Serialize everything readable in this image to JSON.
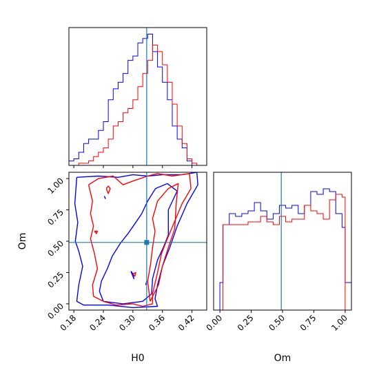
{
  "chart_data": {
    "type": "corner",
    "parameters": [
      "H0",
      "Om"
    ],
    "truth": {
      "H0": 0.328,
      "Om": 0.49
    },
    "colors": {
      "series_1": "#0000ff",
      "series_2": "#ff0000",
      "truth": "#1f77b4",
      "frame": "#000000"
    },
    "H0_axis": {
      "range": [
        0.17,
        0.45
      ],
      "ticks": [
        0.18,
        0.24,
        0.3,
        0.36,
        0.42
      ],
      "tick_labels": [
        "0.18",
        "0.24",
        "0.30",
        "0.36",
        "0.42"
      ],
      "label": "H0"
    },
    "Om_axis": {
      "range": [
        -0.05,
        1.05
      ],
      "ticks": [
        0.0,
        0.25,
        0.5,
        0.75,
        1.0
      ],
      "tick_labels": [
        "0.00",
        "0.25",
        "0.50",
        "0.75",
        "1.00"
      ],
      "label": "Om"
    },
    "marginal_H0": {
      "bin_edges": [
        0.17,
        0.18,
        0.19,
        0.2,
        0.21,
        0.22,
        0.23,
        0.24,
        0.25,
        0.26,
        0.27,
        0.28,
        0.29,
        0.3,
        0.31,
        0.32,
        0.33,
        0.34,
        0.35,
        0.36,
        0.37,
        0.38,
        0.39,
        0.4,
        0.41,
        0.42,
        0.43,
        0.44,
        0.45
      ],
      "series": [
        {
          "color": "#0000ff",
          "counts": [
            2,
            3,
            6,
            10,
            12,
            12,
            16,
            20,
            30,
            35,
            38,
            42,
            48,
            50,
            56,
            58,
            60,
            52,
            45,
            38,
            30,
            18,
            12,
            8,
            2,
            0,
            0,
            0
          ]
        },
        {
          "color": "#ff0000",
          "counts": [
            0,
            0,
            1,
            1,
            2,
            4,
            6,
            8,
            12,
            18,
            20,
            24,
            26,
            30,
            36,
            42,
            48,
            55,
            52,
            46,
            38,
            28,
            18,
            10,
            3,
            1,
            0,
            0
          ]
        }
      ]
    },
    "marginal_Om": {
      "bin_edges": [
        -0.05,
        0.0,
        0.025,
        0.075,
        0.125,
        0.175,
        0.225,
        0.275,
        0.325,
        0.375,
        0.425,
        0.475,
        0.525,
        0.575,
        0.625,
        0.675,
        0.725,
        0.775,
        0.825,
        0.875,
        0.925,
        0.975,
        1.0,
        1.05
      ],
      "series": [
        {
          "color": "#0000ff",
          "counts": [
            0,
            0.2,
            0.62,
            0.7,
            0.68,
            0.7,
            0.72,
            0.78,
            0.72,
            0.66,
            0.7,
            0.76,
            0.74,
            0.76,
            0.7,
            0.76,
            0.86,
            0.84,
            0.88,
            0.86,
            0.7,
            0.6,
            0.2
          ]
        },
        {
          "color": "#ff0000",
          "counts": [
            0,
            0,
            0.62,
            0.62,
            0.62,
            0.62,
            0.64,
            0.64,
            0.68,
            0.64,
            0.62,
            0.68,
            0.64,
            0.66,
            0.66,
            0.76,
            0.72,
            0.7,
            0.66,
            0.8,
            0.84,
            0.82,
            0
          ]
        }
      ]
    },
    "joint_contours": [
      {
        "color": "#0000ff",
        "level": "outer",
        "points": [
          [
            0.186,
            1.01
          ],
          [
            0.23,
            1.02
          ],
          [
            0.27,
            1.01
          ],
          [
            0.3,
            1.03
          ],
          [
            0.33,
            1.02
          ],
          [
            0.36,
            1.03
          ],
          [
            0.4,
            1.03
          ],
          [
            0.43,
            1.05
          ],
          [
            0.432,
            0.95
          ],
          [
            0.41,
            0.8
          ],
          [
            0.39,
            0.62
          ],
          [
            0.375,
            0.45
          ],
          [
            0.36,
            0.3
          ],
          [
            0.35,
            0.15
          ],
          [
            0.345,
            0.04
          ],
          [
            0.35,
            -0.02
          ],
          [
            0.3,
            -0.03
          ],
          [
            0.25,
            -0.01
          ],
          [
            0.2,
            -0.01
          ],
          [
            0.186,
            0.02
          ],
          [
            0.19,
            0.15
          ],
          [
            0.198,
            0.3
          ],
          [
            0.19,
            0.42
          ],
          [
            0.183,
            0.5
          ],
          [
            0.188,
            0.65
          ],
          [
            0.182,
            0.8
          ],
          [
            0.186,
            1.01
          ]
        ]
      },
      {
        "color": "#0000ff",
        "level": "inner",
        "points": [
          [
            0.24,
            0.02
          ],
          [
            0.28,
            0.0
          ],
          [
            0.32,
            0.02
          ],
          [
            0.338,
            0.08
          ],
          [
            0.34,
            0.2
          ],
          [
            0.35,
            0.35
          ],
          [
            0.362,
            0.45
          ],
          [
            0.372,
            0.55
          ],
          [
            0.372,
            0.75
          ],
          [
            0.39,
            0.9
          ],
          [
            0.37,
            0.96
          ],
          [
            0.346,
            0.92
          ],
          [
            0.33,
            0.82
          ],
          [
            0.318,
            0.72
          ],
          [
            0.306,
            0.65
          ],
          [
            0.29,
            0.56
          ],
          [
            0.274,
            0.48
          ],
          [
            0.258,
            0.38
          ],
          [
            0.248,
            0.28
          ],
          [
            0.236,
            0.18
          ],
          [
            0.232,
            0.1
          ],
          [
            0.24,
            0.02
          ]
        ]
      },
      {
        "color": "#0000ff",
        "level": "island",
        "points": [
          [
            0.296,
            0.26
          ],
          [
            0.302,
            0.2
          ],
          [
            0.3,
            0.24
          ],
          [
            0.296,
            0.26
          ]
        ]
      },
      {
        "color": "#0000ff",
        "level": "island",
        "points": [
          [
            0.242,
            0.86
          ],
          [
            0.244,
            0.84
          ],
          [
            0.242,
            0.86
          ]
        ]
      },
      {
        "color": "#0000ff",
        "level": "island",
        "points": [
          [
            0.326,
            0.15
          ],
          [
            0.328,
            0.18
          ],
          [
            0.326,
            0.15
          ]
        ]
      },
      {
        "color": "#ff0000",
        "level": "outer",
        "points": [
          [
            0.21,
            0.95
          ],
          [
            0.23,
            1.0
          ],
          [
            0.26,
            1.02
          ],
          [
            0.28,
            0.95
          ],
          [
            0.3,
            0.98
          ],
          [
            0.33,
            1.02
          ],
          [
            0.35,
            1.04
          ],
          [
            0.38,
            1.02
          ],
          [
            0.415,
            1.04
          ],
          [
            0.418,
            0.92
          ],
          [
            0.4,
            0.8
          ],
          [
            0.385,
            0.66
          ],
          [
            0.37,
            0.52
          ],
          [
            0.358,
            0.4
          ],
          [
            0.35,
            0.25
          ],
          [
            0.34,
            0.08
          ],
          [
            0.34,
            0.0
          ],
          [
            0.32,
            -0.02
          ],
          [
            0.3,
            0.0
          ],
          [
            0.266,
            -0.01
          ],
          [
            0.24,
            0.02
          ],
          [
            0.22,
            0.06
          ],
          [
            0.218,
            0.15
          ],
          [
            0.228,
            0.28
          ],
          [
            0.222,
            0.4
          ],
          [
            0.214,
            0.52
          ],
          [
            0.22,
            0.62
          ],
          [
            0.214,
            0.72
          ],
          [
            0.218,
            0.82
          ],
          [
            0.21,
            0.95
          ]
        ]
      },
      {
        "color": "#ff0000",
        "level": "inner",
        "points": [
          [
            0.335,
            0.02
          ],
          [
            0.352,
            0.15
          ],
          [
            0.36,
            0.3
          ],
          [
            0.372,
            0.45
          ],
          [
            0.385,
            0.6
          ],
          [
            0.388,
            0.8
          ],
          [
            0.392,
            0.96
          ],
          [
            0.372,
            0.92
          ],
          [
            0.35,
            0.82
          ],
          [
            0.34,
            0.68
          ],
          [
            0.345,
            0.58
          ],
          [
            0.34,
            0.45
          ],
          [
            0.336,
            0.32
          ],
          [
            0.33,
            0.18
          ],
          [
            0.335,
            0.02
          ]
        ]
      },
      {
        "color": "#ff0000",
        "level": "island",
        "points": [
          [
            0.246,
            0.92
          ],
          [
            0.25,
            0.88
          ],
          [
            0.254,
            0.92
          ],
          [
            0.25,
            0.94
          ],
          [
            0.246,
            0.92
          ]
        ]
      },
      {
        "color": "#ff0000",
        "level": "island",
        "points": [
          [
            0.222,
            0.58
          ],
          [
            0.226,
            0.56
          ],
          [
            0.228,
            0.58
          ],
          [
            0.222,
            0.58
          ]
        ]
      },
      {
        "color": "#ff0000",
        "level": "island",
        "points": [
          [
            0.3,
            0.24
          ],
          [
            0.304,
            0.22
          ],
          [
            0.306,
            0.25
          ],
          [
            0.3,
            0.24
          ]
        ]
      }
    ]
  }
}
